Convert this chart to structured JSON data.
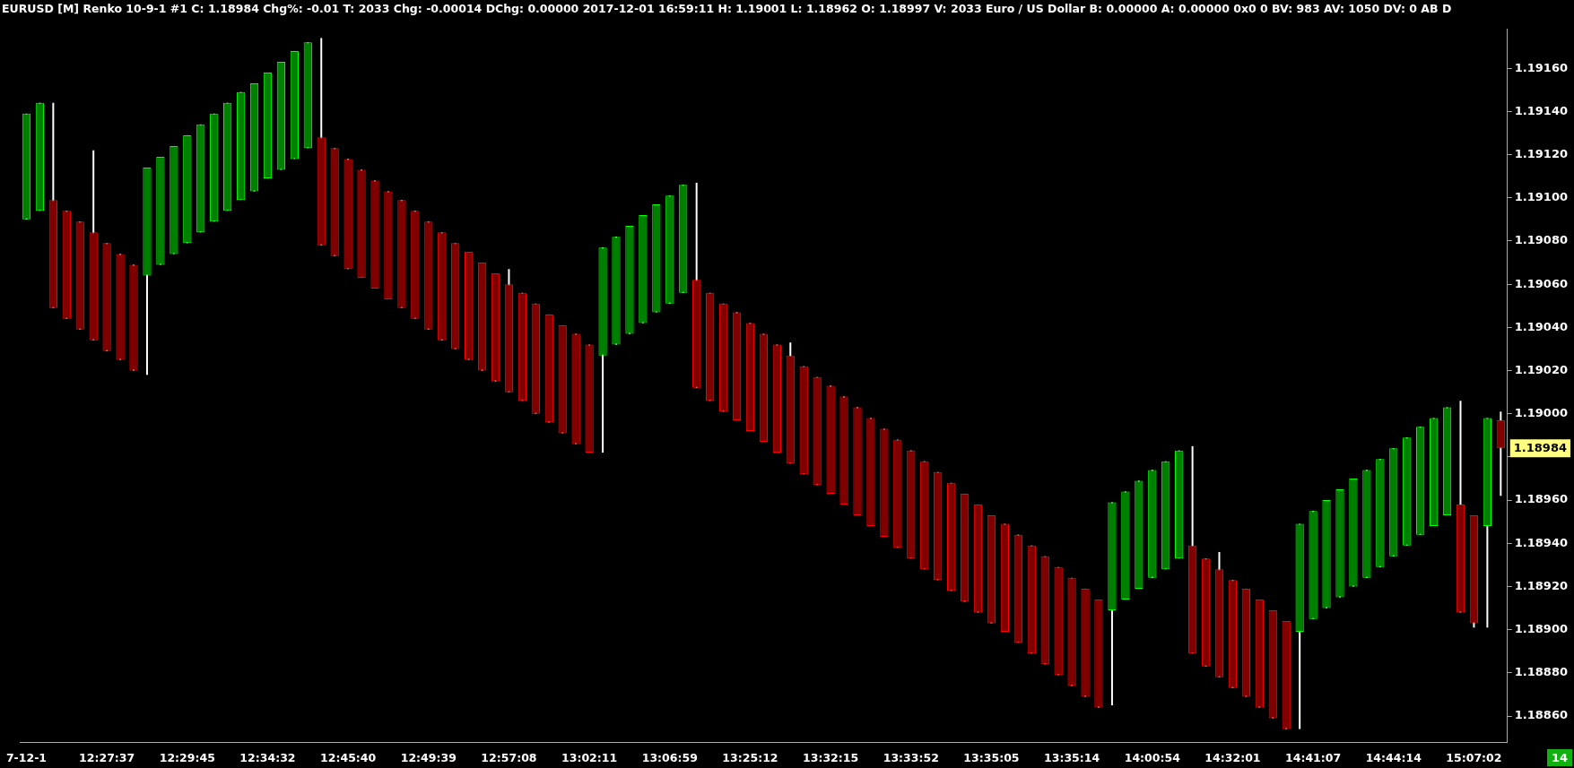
{
  "chart_data": {
    "type": "candlestick",
    "title": "EURUSD [M]  Renko 10-9-1  #1 C: 1.18984 Chg%: -0.01 T: 2033 Chg: -0.00014 DChg: 0.00000 2017-12-01 16:59:11 H: 1.19001 L: 1.18962 O: 1.18997 V: 2033 Euro / US Dollar B: 0.00000 A: 0.00000 0x0 0 BV: 983 AV: 1050 DV: 0 AB D",
    "categories": [
      "7-12-1",
      null,
      null,
      null,
      null,
      null,
      "12:27:37",
      null,
      null,
      null,
      null,
      null,
      "12:29:45",
      null,
      null,
      null,
      null,
      null,
      "12:34:32",
      null,
      null,
      null,
      null,
      null,
      "12:45:40",
      null,
      null,
      null,
      null,
      null,
      "12:49:39",
      null,
      null,
      null,
      null,
      null,
      "12:57:08",
      null,
      null,
      null,
      null,
      null,
      "13:02:11",
      null,
      null,
      null,
      null,
      null,
      "13:06:59",
      null,
      null,
      null,
      null,
      null,
      "13:25:12",
      null,
      null,
      null,
      null,
      null,
      "13:32:15",
      null,
      null,
      null,
      null,
      null,
      "13:33:52",
      null,
      null,
      null,
      null,
      null,
      "13:35:05",
      null,
      null,
      null,
      null,
      null,
      "13:35:14",
      null,
      null,
      null,
      null,
      null,
      "14:00:54",
      null,
      null,
      null,
      null,
      null,
      "14:32:01",
      null,
      null,
      null,
      null,
      null,
      "14:41:07",
      null,
      null,
      null,
      null,
      null,
      "14:44:14",
      null,
      null,
      null,
      null,
      null,
      "15:07:02",
      null,
      null
    ],
    "ohlc": [
      [
        1.1909,
        1.19139,
        1.1909,
        1.19139
      ],
      [
        1.19094,
        1.19144,
        1.19094,
        1.19144
      ],
      [
        1.19099,
        1.19144,
        1.19049,
        1.19049
      ],
      [
        1.19094,
        1.19094,
        1.19044,
        1.19044
      ],
      [
        1.19089,
        1.19089,
        1.19039,
        1.19039
      ],
      [
        1.19084,
        1.19122,
        1.19034,
        1.19034
      ],
      [
        1.19079,
        1.19079,
        1.19029,
        1.19029
      ],
      [
        1.19074,
        1.19074,
        1.19025,
        1.19025
      ],
      [
        1.19069,
        1.19069,
        1.1902,
        1.1902
      ],
      [
        1.19064,
        1.19114,
        1.19018,
        1.19114
      ],
      [
        1.19069,
        1.19119,
        1.19069,
        1.19119
      ],
      [
        1.19074,
        1.19124,
        1.19074,
        1.19124
      ],
      [
        1.19079,
        1.19129,
        1.19079,
        1.19129
      ],
      [
        1.19084,
        1.19134,
        1.19084,
        1.19134
      ],
      [
        1.19089,
        1.19139,
        1.19089,
        1.19139
      ],
      [
        1.19094,
        1.19144,
        1.19094,
        1.19144
      ],
      [
        1.19099,
        1.19149,
        1.19099,
        1.19149
      ],
      [
        1.19103,
        1.19153,
        1.19103,
        1.19153
      ],
      [
        1.19109,
        1.19158,
        1.19109,
        1.19158
      ],
      [
        1.19113,
        1.19163,
        1.19113,
        1.19163
      ],
      [
        1.19118,
        1.19168,
        1.19118,
        1.19168
      ],
      [
        1.19123,
        1.19172,
        1.19123,
        1.19172
      ],
      [
        1.19128,
        1.19174,
        1.19078,
        1.19078
      ],
      [
        1.19123,
        1.19123,
        1.19073,
        1.19073
      ],
      [
        1.19118,
        1.19118,
        1.19067,
        1.19067
      ],
      [
        1.19113,
        1.19113,
        1.19063,
        1.19063
      ],
      [
        1.19108,
        1.19108,
        1.19058,
        1.19058
      ],
      [
        1.19103,
        1.19103,
        1.19053,
        1.19053
      ],
      [
        1.19099,
        1.19099,
        1.19049,
        1.19049
      ],
      [
        1.19094,
        1.19094,
        1.19044,
        1.19044
      ],
      [
        1.19089,
        1.19089,
        1.19039,
        1.19039
      ],
      [
        1.19084,
        1.19084,
        1.19034,
        1.19034
      ],
      [
        1.19079,
        1.19079,
        1.1903,
        1.1903
      ],
      [
        1.19075,
        1.19075,
        1.19025,
        1.19025
      ],
      [
        1.1907,
        1.1907,
        1.1902,
        1.1902
      ],
      [
        1.19065,
        1.19065,
        1.19015,
        1.19015
      ],
      [
        1.1906,
        1.19067,
        1.1901,
        1.1901
      ],
      [
        1.19056,
        1.19056,
        1.19006,
        1.19006
      ],
      [
        1.19051,
        1.19051,
        1.19,
        1.19
      ],
      [
        1.19046,
        1.19046,
        1.18996,
        1.18996
      ],
      [
        1.19041,
        1.19041,
        1.18991,
        1.18991
      ],
      [
        1.19037,
        1.19037,
        1.18986,
        1.18986
      ],
      [
        1.19032,
        1.19032,
        1.18982,
        1.18982
      ],
      [
        1.19027,
        1.19077,
        1.18982,
        1.19077
      ],
      [
        1.19032,
        1.19082,
        1.19032,
        1.19082
      ],
      [
        1.19037,
        1.19087,
        1.19037,
        1.19087
      ],
      [
        1.19042,
        1.19092,
        1.19042,
        1.19092
      ],
      [
        1.19047,
        1.19097,
        1.19047,
        1.19097
      ],
      [
        1.19051,
        1.19101,
        1.19051,
        1.19101
      ],
      [
        1.19056,
        1.19106,
        1.19056,
        1.19106
      ],
      [
        1.19062,
        1.19107,
        1.19012,
        1.19012
      ],
      [
        1.19056,
        1.19056,
        1.19006,
        1.19006
      ],
      [
        1.19051,
        1.19051,
        1.19001,
        1.19001
      ],
      [
        1.19047,
        1.19047,
        1.18997,
        1.18997
      ],
      [
        1.19042,
        1.19042,
        1.18992,
        1.18992
      ],
      [
        1.19037,
        1.19037,
        1.18987,
        1.18987
      ],
      [
        1.19032,
        1.19032,
        1.18982,
        1.18982
      ],
      [
        1.19027,
        1.19033,
        1.18977,
        1.18977
      ],
      [
        1.19022,
        1.19022,
        1.18972,
        1.18972
      ],
      [
        1.19017,
        1.19017,
        1.18967,
        1.18967
      ],
      [
        1.19013,
        1.19013,
        1.18963,
        1.18963
      ],
      [
        1.19008,
        1.19008,
        1.18958,
        1.18958
      ],
      [
        1.19003,
        1.19003,
        1.18953,
        1.18953
      ],
      [
        1.18998,
        1.18998,
        1.18948,
        1.18948
      ],
      [
        1.18993,
        1.18993,
        1.18943,
        1.18943
      ],
      [
        1.18988,
        1.18988,
        1.18938,
        1.18938
      ],
      [
        1.18983,
        1.18983,
        1.18933,
        1.18933
      ],
      [
        1.18978,
        1.18978,
        1.18928,
        1.18928
      ],
      [
        1.18973,
        1.18973,
        1.18923,
        1.18923
      ],
      [
        1.18968,
        1.18968,
        1.18918,
        1.18918
      ],
      [
        1.18963,
        1.18963,
        1.18913,
        1.18913
      ],
      [
        1.18958,
        1.18958,
        1.18908,
        1.18908
      ],
      [
        1.18953,
        1.18953,
        1.18903,
        1.18903
      ],
      [
        1.18949,
        1.18949,
        1.18899,
        1.18899
      ],
      [
        1.18944,
        1.18944,
        1.18894,
        1.18894
      ],
      [
        1.18939,
        1.18939,
        1.18889,
        1.18889
      ],
      [
        1.18934,
        1.18934,
        1.18884,
        1.18884
      ],
      [
        1.18929,
        1.18929,
        1.18879,
        1.18879
      ],
      [
        1.18924,
        1.18924,
        1.18874,
        1.18874
      ],
      [
        1.18919,
        1.18919,
        1.18869,
        1.18869
      ],
      [
        1.18914,
        1.18914,
        1.18864,
        1.18864
      ],
      [
        1.18909,
        1.18959,
        1.18865,
        1.18959
      ],
      [
        1.18914,
        1.18964,
        1.18914,
        1.18964
      ],
      [
        1.18919,
        1.18969,
        1.18919,
        1.18969
      ],
      [
        1.18924,
        1.18974,
        1.18924,
        1.18974
      ],
      [
        1.18928,
        1.18978,
        1.18928,
        1.18978
      ],
      [
        1.18933,
        1.18983,
        1.18933,
        1.18983
      ],
      [
        1.18939,
        1.18985,
        1.18889,
        1.18889
      ],
      [
        1.18933,
        1.18933,
        1.18883,
        1.18883
      ],
      [
        1.18928,
        1.18936,
        1.18878,
        1.18878
      ],
      [
        1.18923,
        1.18923,
        1.18873,
        1.18873
      ],
      [
        1.18919,
        1.18919,
        1.18869,
        1.18869
      ],
      [
        1.18914,
        1.18914,
        1.18864,
        1.18864
      ],
      [
        1.18909,
        1.18909,
        1.18859,
        1.18859
      ],
      [
        1.18904,
        1.18904,
        1.18854,
        1.18854
      ],
      [
        1.18899,
        1.18949,
        1.18854,
        1.18949
      ],
      [
        1.18905,
        1.18955,
        1.18905,
        1.18955
      ],
      [
        1.1891,
        1.1896,
        1.1891,
        1.1896
      ],
      [
        1.18915,
        1.18965,
        1.18915,
        1.18965
      ],
      [
        1.1892,
        1.1897,
        1.1892,
        1.1897
      ],
      [
        1.18924,
        1.18974,
        1.18924,
        1.18974
      ],
      [
        1.18929,
        1.18979,
        1.18929,
        1.18979
      ],
      [
        1.18934,
        1.18984,
        1.18934,
        1.18984
      ],
      [
        1.18939,
        1.18989,
        1.18939,
        1.18989
      ],
      [
        1.18944,
        1.18994,
        1.18944,
        1.18994
      ],
      [
        1.18948,
        1.18998,
        1.18948,
        1.18998
      ],
      [
        1.18953,
        1.19003,
        1.18953,
        1.19003
      ],
      [
        1.18958,
        1.19006,
        1.18908,
        1.18908
      ],
      [
        1.18953,
        1.18953,
        1.18901,
        1.18903
      ],
      [
        1.18948,
        1.18998,
        1.18901,
        1.18998
      ],
      [
        1.18997,
        1.19001,
        1.18962,
        1.18984
      ]
    ],
    "colors": [
      "#00ff00",
      "#00ff00",
      "#ff0000",
      "#ff0000",
      "#ff0000",
      "#ff0000",
      "#ff0000",
      "#ff0000",
      "#ff0000",
      "#00ff00",
      "#00ff00",
      "#00ff00",
      "#00ff00",
      "#00ff00",
      "#00ff00",
      "#00ff00",
      "#00ff00",
      "#00ff00",
      "#00ff00",
      "#00ff00",
      "#00ff00",
      "#00ff00",
      "#ff0000",
      "#ff0000",
      "#ff0000",
      "#ff0000",
      "#ff0000",
      "#ff0000",
      "#ff0000",
      "#ff0000",
      "#ff0000",
      "#ff0000",
      "#ff0000",
      "#ff0000",
      "#ff0000",
      "#ff0000",
      "#ff0000",
      "#ff0000",
      "#ff0000",
      "#ff0000",
      "#ff0000",
      "#ff0000",
      "#ff0000",
      "#00ff00",
      "#00ff00",
      "#00ff00",
      "#00ff00",
      "#00ff00",
      "#00ff00",
      "#00ff00",
      "#ff0000",
      "#ff0000",
      "#ff0000",
      "#ff0000",
      "#ff0000",
      "#ff0000",
      "#ff0000",
      "#ff0000",
      "#ff0000",
      "#ff0000",
      "#ff0000",
      "#ff0000",
      "#ff0000",
      "#ff0000",
      "#ff0000",
      "#ff0000",
      "#ff0000",
      "#ff0000",
      "#ff0000",
      "#ff0000",
      "#ff0000",
      "#ff0000",
      "#ff0000",
      "#ff0000",
      "#ff0000",
      "#ff0000",
      "#ff0000",
      "#ff0000",
      "#ff0000",
      "#ff0000",
      "#ff0000",
      "#00ff00",
      "#00ff00",
      "#00ff00",
      "#00ff00",
      "#00ff00",
      "#00ff00",
      "#ff0000",
      "#ff0000",
      "#ff0000",
      "#ff0000",
      "#ff0000",
      "#ff0000",
      "#ff0000",
      "#ff0000",
      "#00ff00",
      "#00ff00",
      "#00ff00",
      "#00ff00",
      "#00ff00",
      "#00ff00",
      "#00ff00",
      "#00ff00",
      "#00ff00",
      "#00ff00",
      "#00ff00",
      "#00ff00",
      "#ff0000",
      "#ff0000",
      "#00ff00",
      "#ff0000"
    ],
    "ylim": [
      1.18848,
      1.19178
    ],
    "yticks": [
      {
        "value": 1.1886,
        "label": "1.18860"
      },
      {
        "value": 1.1888,
        "label": "1.18880"
      },
      {
        "value": 1.189,
        "label": "1.18900"
      },
      {
        "value": 1.1892,
        "label": "1.18920"
      },
      {
        "value": 1.1894,
        "label": "1.18940"
      },
      {
        "value": 1.1896,
        "label": "1.18960"
      },
      {
        "value": 1.1898,
        "label": null
      },
      {
        "value": 1.19,
        "label": "1.19000"
      },
      {
        "value": 1.1902,
        "label": "1.19020"
      },
      {
        "value": 1.1904,
        "label": "1.19040"
      },
      {
        "value": 1.1906,
        "label": "1.19060"
      },
      {
        "value": 1.1908,
        "label": "1.19080"
      },
      {
        "value": 1.191,
        "label": "1.19100"
      },
      {
        "value": 1.1912,
        "label": "1.19120"
      },
      {
        "value": 1.1914,
        "label": "1.19140"
      },
      {
        "value": 1.1916,
        "label": "1.19160"
      }
    ],
    "annotations": [
      "14",
      "1.18984"
    ],
    "grid": false,
    "legend": false
  }
}
